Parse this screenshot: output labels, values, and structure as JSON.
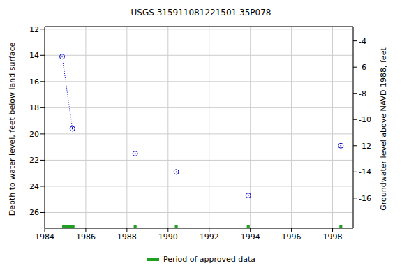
{
  "chart_data": {
    "type": "scatter",
    "title": "USGS 315911081221501 35P078",
    "ylabel": "Depth to water level, feet below land surface",
    "y2label": "Groundwater level above NAVD 1988, feet",
    "xlim": [
      1984,
      1999
    ],
    "xticks": [
      1984,
      1986,
      1988,
      1990,
      1992,
      1994,
      1996,
      1998
    ],
    "ylim": [
      11.8,
      27.2
    ],
    "yticks": [
      12,
      14,
      16,
      18,
      20,
      22,
      24,
      26
    ],
    "y2lim": [
      -18.3,
      -2.9
    ],
    "y2ticks": [
      -4,
      -6,
      -8,
      -10,
      -12,
      -14,
      -16
    ],
    "grid": true,
    "series": [
      {
        "type": "scatter",
        "marker": "circle",
        "color": "#0000cc",
        "x": [
          1984.85,
          1985.35,
          1988.4,
          1990.4,
          1993.9,
          1998.4
        ],
        "values": [
          14.1,
          19.6,
          21.5,
          22.9,
          24.7,
          20.9
        ]
      },
      {
        "type": "line",
        "marker": "none",
        "line_style": "dotted",
        "color": "#0000cc",
        "x": [
          1984.85,
          1985.35
        ],
        "values": [
          14.1,
          19.6
        ]
      }
    ],
    "approved_periods": {
      "name": "Period of approved data",
      "color": "#1fa01f",
      "ranges": [
        [
          1984.85,
          1985.45
        ],
        [
          1988.33,
          1988.47
        ],
        [
          1990.33,
          1990.47
        ],
        [
          1993.83,
          1993.97
        ],
        [
          1998.33,
          1998.47
        ]
      ]
    }
  }
}
